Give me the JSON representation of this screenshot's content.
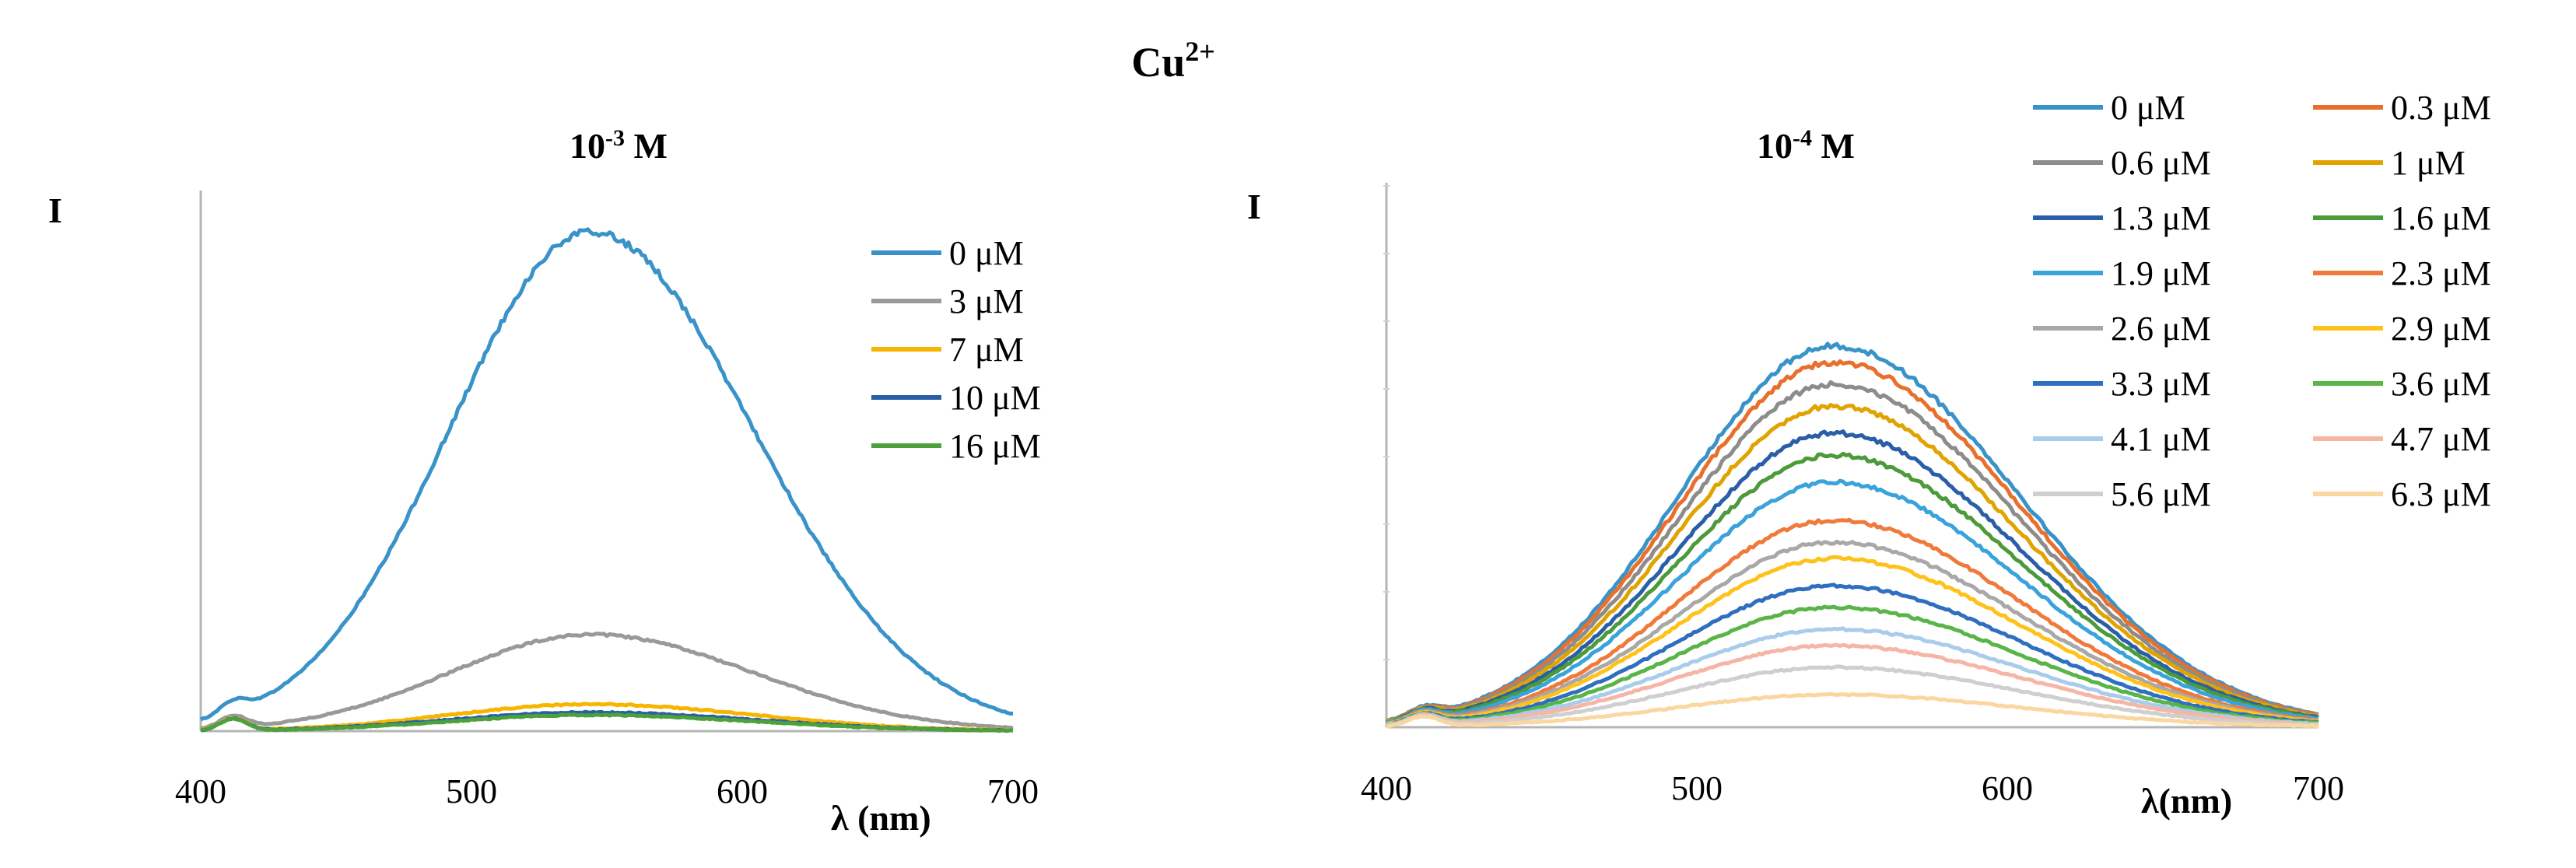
{
  "figure_title": {
    "base": "Cu",
    "sup": "2+"
  },
  "chart_data": [
    {
      "type": "line",
      "panel": "left",
      "title": {
        "base": "10",
        "sup": "-3",
        "suffix": " M"
      },
      "ylabel": "I",
      "xlabel": "λ (nm)",
      "xlim": [
        400,
        700
      ],
      "xticks": [
        "400",
        "500",
        "600",
        "700"
      ],
      "ylim": [
        0,
        1
      ],
      "legend_position": "top-right",
      "legend_columns": 1,
      "series": [
        {
          "name": "0 μM",
          "color": "#3A93C8",
          "peak": 0.93
        },
        {
          "name": "3 μM",
          "color": "#999999",
          "peak": 0.18
        },
        {
          "name": "7 μM",
          "color": "#F7B500",
          "peak": 0.05
        },
        {
          "name": "10 μM",
          "color": "#2A5FA8",
          "peak": 0.035
        },
        {
          "name": "16 μM",
          "color": "#4CA13B",
          "peak": 0.03
        }
      ]
    },
    {
      "type": "line",
      "panel": "right",
      "title": {
        "base": "10",
        "sup": "-4",
        "suffix": " M"
      },
      "ylabel": "I",
      "xlabel": "λ(nm)",
      "xlim": [
        400,
        700
      ],
      "xticks": [
        "400",
        "500",
        "600",
        "700"
      ],
      "ylim": [
        0,
        1
      ],
      "legend_position": "top-right",
      "legend_columns": 2,
      "series": [
        {
          "name": "0 μM",
          "color": "#3A93C8",
          "peak": 0.7
        },
        {
          "name": "0.3 μM",
          "color": "#E96F2C",
          "peak": 0.67
        },
        {
          "name": "0.6 μM",
          "color": "#8C8C8C",
          "peak": 0.63
        },
        {
          "name": "1 μM",
          "color": "#E0A300",
          "peak": 0.59
        },
        {
          "name": "1.3 μM",
          "color": "#2A5FA8",
          "peak": 0.54
        },
        {
          "name": "1.6 μM",
          "color": "#4C9A3A",
          "peak": 0.5
        },
        {
          "name": "1.9  μM",
          "color": "#3BA3DB",
          "peak": 0.45
        },
        {
          "name": "2.3 μM",
          "color": "#F07A3C",
          "peak": 0.38
        },
        {
          "name": "2.6 μM",
          "color": "#A8A8A8",
          "peak": 0.34
        },
        {
          "name": "2.9 μM",
          "color": "#FFC21A",
          "peak": 0.31
        },
        {
          "name": "3.3 μM",
          "color": "#2F6FC0",
          "peak": 0.26
        },
        {
          "name": "3.6 μM",
          "color": "#5AB548",
          "peak": 0.22
        },
        {
          "name": "4.1 μM",
          "color": "#A9CCEB",
          "peak": 0.18
        },
        {
          "name": "4.7 μM",
          "color": "#F6B6A6",
          "peak": 0.15
        },
        {
          "name": "5.6 μM",
          "color": "#CFCFCF",
          "peak": 0.11
        },
        {
          "name": "6.3 μM",
          "color": "#FAD7A0",
          "peak": 0.06
        }
      ]
    }
  ]
}
